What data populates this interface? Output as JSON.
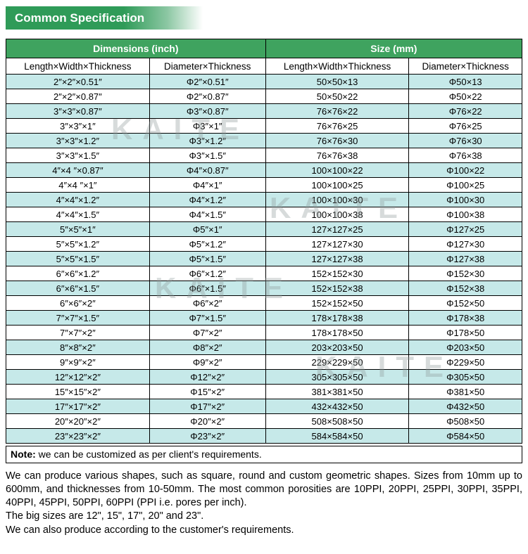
{
  "banner": {
    "title": "Common Specification"
  },
  "table": {
    "group_headers": [
      "Dimensions (inch)",
      "Size (mm)"
    ],
    "sub_headers": [
      "Length×Width×Thickness",
      "Diameter×Thickness",
      "Length×Width×Thickness",
      "Diameter×Thickness"
    ],
    "rows": [
      [
        "2″×2″×0.51″",
        "Φ2″×0.51″",
        "50×50×13",
        "Φ50×13"
      ],
      [
        "2″×2″×0.87″",
        "Φ2″×0.87″",
        "50×50×22",
        "Φ50×22"
      ],
      [
        "3″×3″×0.87″",
        "Φ3″×0.87″",
        "76×76×22",
        "Φ76×22"
      ],
      [
        "3″×3″×1″",
        "Φ3″×1″",
        "76×76×25",
        "Φ76×25"
      ],
      [
        "3″×3″×1.2″",
        "Φ3″×1.2″",
        "76×76×30",
        "Φ76×30"
      ],
      [
        "3″×3″×1.5″",
        "Φ3″×1.5″",
        "76×76×38",
        "Φ76×38"
      ],
      [
        "4″×4 ″×0.87″",
        "Φ4″×0.87″",
        "100×100×22",
        "Φ100×22"
      ],
      [
        "4″×4 ″×1″",
        "Φ4″×1″",
        "100×100×25",
        "Φ100×25"
      ],
      [
        "4″×4″×1.2″",
        "Φ4″×1.2″",
        "100×100×30",
        "Φ100×30"
      ],
      [
        "4″×4″×1.5″",
        "Φ4″×1.5″",
        "100×100×38",
        "Φ100×38"
      ],
      [
        "5″×5″×1″",
        "Φ5″×1″",
        "127×127×25",
        "Φ127×25"
      ],
      [
        "5″×5″×1.2″",
        "Φ5″×1.2″",
        "127×127×30",
        "Φ127×30"
      ],
      [
        "5″×5″×1.5″",
        "Φ5″×1.5″",
        "127×127×38",
        "Φ127×38"
      ],
      [
        "6″×6″×1.2″",
        "Φ6″×1.2″",
        "152×152×30",
        "Φ152×30"
      ],
      [
        "6″×6″×1.5″",
        "Φ6″×1.5″",
        "152×152×38",
        "Φ152×38"
      ],
      [
        "6″×6″×2″",
        "Φ6″×2″",
        "152×152×50",
        "Φ152×50"
      ],
      [
        "7″×7″×1.5″",
        "Φ7″×1.5″",
        "178×178×38",
        "Φ178×38"
      ],
      [
        "7″×7″×2″",
        "Φ7″×2″",
        "178×178×50",
        "Φ178×50"
      ],
      [
        "8″×8″×2″",
        "Φ8″×2″",
        "203×203×50",
        "Φ203×50"
      ],
      [
        "9″×9″×2″",
        "Φ9″×2″",
        "229×229×50",
        "Φ229×50"
      ],
      [
        "12″×12″×2″",
        "Φ12″×2″",
        "305×305×50",
        "Φ305×50"
      ],
      [
        "15″×15″×2″",
        "Φ15″×2″",
        "381×381×50",
        "Φ381×50"
      ],
      [
        "17″×17″×2″",
        "Φ17″×2″",
        "432×432×50",
        "Φ432×50"
      ],
      [
        "20″×20″×2″",
        "Φ20″×2″",
        "508×508×50",
        "Φ508×50"
      ],
      [
        "23″×23″×2″",
        "Φ23″×2″",
        "584×584×50",
        "Φ584×50"
      ]
    ]
  },
  "note": {
    "label": "Note:",
    "text": " we can be customized as per client's requirements."
  },
  "paragraphs": [
    "We can produce various shapes, such as square, round and custom geometric shapes. Sizes from 10mm up to 600mm, and thicknesses from 10-50mm. The most common porosities are 10PPI, 20PPI, 25PPI, 30PPI, 35PPI, 40PPI, 45PPI, 50PPI, 60PPI (PPI i.e. pores per inch).",
    "The big sizes are 12\", 15\", 17\", 20\" and 23\".",
    "We can also produce according to the customer's requirements."
  ],
  "watermark": {
    "text": "KAITE"
  },
  "colors": {
    "banner_green": "#2f9b58",
    "header_green": "#3fa35f",
    "row_alt_cyan": "#c6e9e9",
    "row_base": "#ffffff",
    "border": "#000000"
  }
}
